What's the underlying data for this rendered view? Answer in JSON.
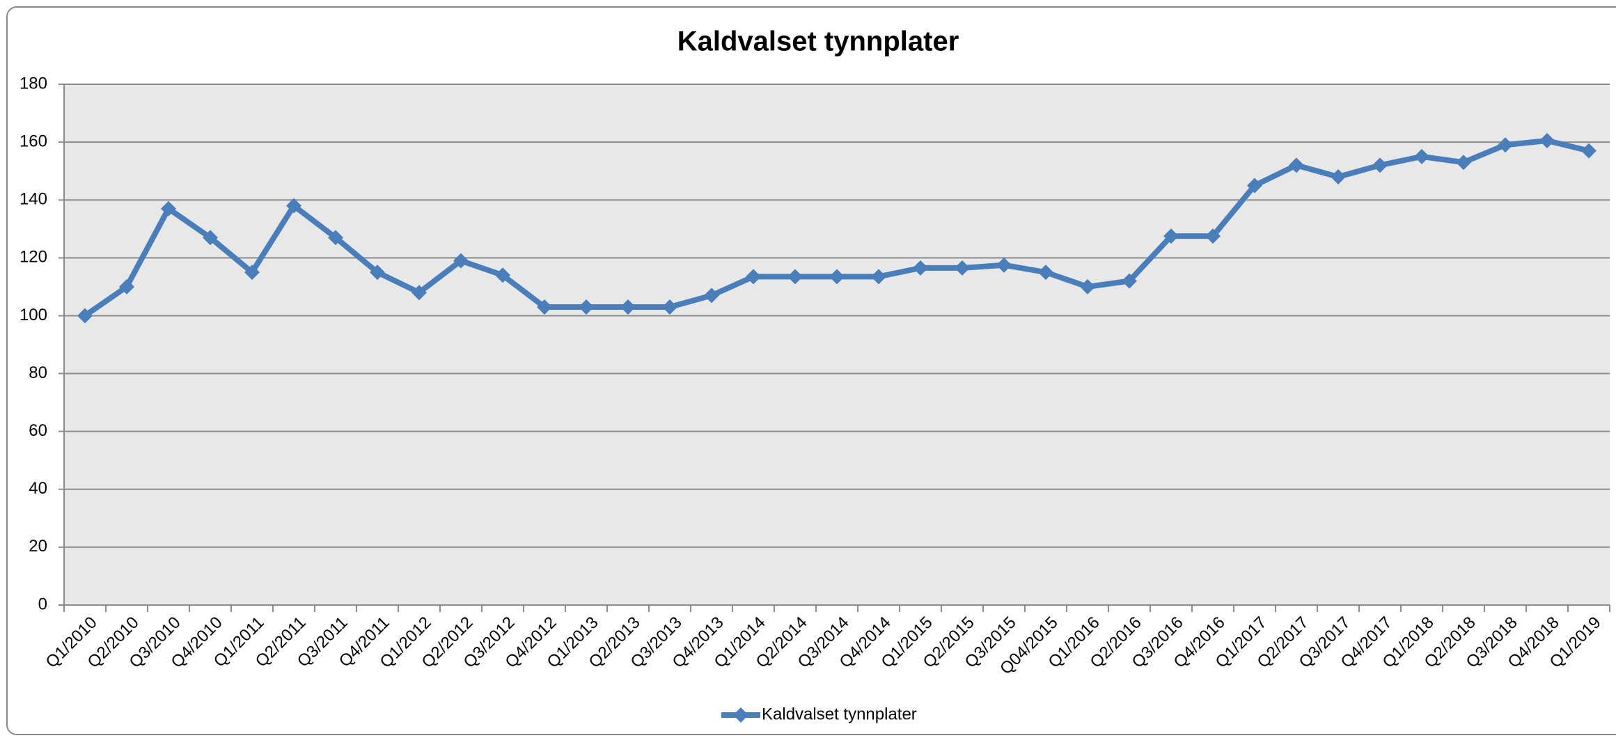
{
  "chart_data": {
    "type": "line",
    "title": "Kaldvalset tynnplater",
    "categories": [
      "Q1/2010",
      "Q2/2010",
      "Q3/2010",
      "Q4/2010",
      "Q1/2011",
      "Q2/2011",
      "Q3/2011",
      "Q4/2011",
      "Q1/2012",
      "Q2/2012",
      "Q3/2012",
      "Q4/2012",
      "Q1/2013",
      "Q2/2013",
      "Q3/2013",
      "Q4/2013",
      "Q1/2014",
      "Q2/2014",
      "Q3/2014",
      "Q4/2014",
      "Q1/2015",
      "Q2/2015",
      "Q3/2015",
      "Q04/2015",
      "Q1/2016",
      "Q2/2016",
      "Q3/2016",
      "Q4/2016",
      "Q1/2017",
      "Q2/2017",
      "Q3/2017",
      "Q4/2017",
      "Q1/2018",
      "Q2/2018",
      "Q3/2018",
      "Q4/2018",
      "Q1/2019"
    ],
    "series": [
      {
        "name": "Kaldvalset tynnplater",
        "color": "#4a7ebb",
        "values": [
          100,
          110,
          137,
          127,
          115,
          138,
          127,
          115,
          108,
          119,
          114,
          103,
          103,
          103,
          103,
          107,
          113.5,
          113.5,
          113.5,
          113.5,
          116.5,
          116.5,
          117.5,
          115,
          110,
          112,
          127.5,
          127.5,
          145,
          152,
          148,
          152,
          155,
          153,
          159,
          160.5,
          157
        ]
      }
    ],
    "ylim": [
      0,
      180
    ],
    "yticks": [
      0,
      20,
      40,
      60,
      80,
      100,
      120,
      140,
      160,
      180
    ],
    "grid": true,
    "legend": "bottom"
  }
}
